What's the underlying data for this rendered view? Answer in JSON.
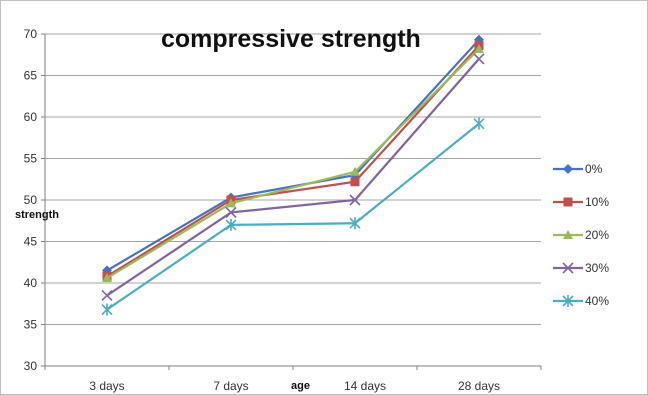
{
  "chart_data": {
    "type": "line",
    "title": "compressive strength",
    "xlabel": "age",
    "ylabel": "strength",
    "categories": [
      "3 days",
      "7 days",
      "14 days",
      "28 days"
    ],
    "ylim": [
      30,
      70
    ],
    "yticks": [
      30,
      35,
      40,
      45,
      50,
      55,
      60,
      65,
      70
    ],
    "grid": true,
    "legend_position": "right",
    "series": [
      {
        "name": "0%",
        "values": [
          41.5,
          50.3,
          53.0,
          69.3
        ],
        "color": "#4472C4",
        "marker": "diamond"
      },
      {
        "name": "10%",
        "values": [
          40.8,
          50.0,
          52.2,
          68.6
        ],
        "color": "#C0504D",
        "marker": "square"
      },
      {
        "name": "20%",
        "values": [
          40.6,
          49.6,
          53.4,
          68.2
        ],
        "color": "#9BBB59",
        "marker": "triangle"
      },
      {
        "name": "30%",
        "values": [
          38.5,
          48.5,
          50.0,
          67.0
        ],
        "color": "#8064A2",
        "marker": "x"
      },
      {
        "name": "40%",
        "values": [
          36.8,
          47.0,
          47.2,
          59.2
        ],
        "color": "#4BACC6",
        "marker": "star"
      }
    ]
  }
}
